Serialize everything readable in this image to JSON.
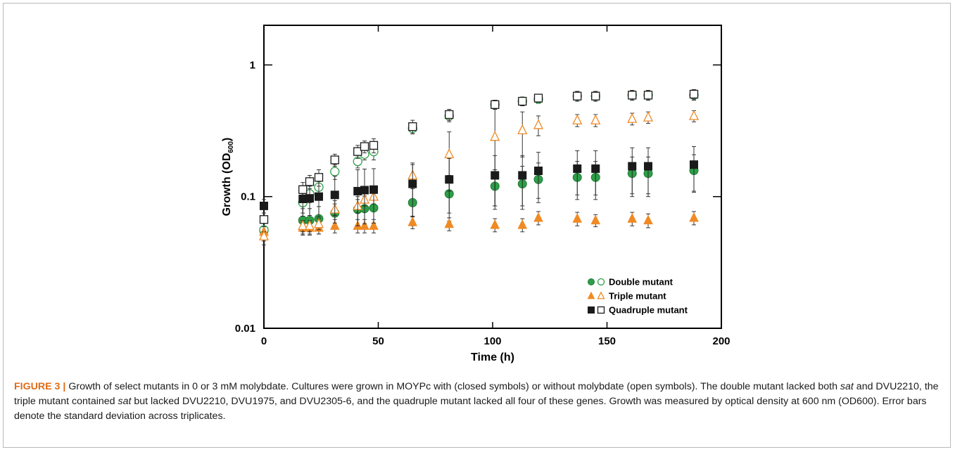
{
  "figure": {
    "label": "FIGURE 3",
    "separator": "|",
    "caption": {
      "p1": " Growth of select mutants in 0 or 3 mM molybdate. Cultures were grown in MOYPc with (closed symbols) or without molybdate (open symbols). The double mutant lacked both ",
      "sat1": "sat",
      "p2": " and DVU2210, the triple mutant contained ",
      "sat2": "sat",
      "p3": " but lacked DVU2210, DVU1975, and DVU2305-6, and the quadruple mutant lacked all four of these genes. Growth was measured by optical density at 600 nm (OD600). Error bars denote the standard deviation across triplicates."
    }
  },
  "chart_data": {
    "type": "scatter",
    "title": "",
    "xlabel": "Time (h)",
    "ylabel_main": "Growth (OD",
    "ylabel_sub": "600",
    "ylabel_close": ")",
    "xlim": [
      0,
      200
    ],
    "ylim": [
      0.01,
      2
    ],
    "y_scale": "log",
    "x_ticks": [
      0,
      50,
      100,
      150,
      200
    ],
    "x_tick_labels": [
      "0",
      "50",
      "100",
      "150",
      "200"
    ],
    "y_ticks": [
      0.01,
      0.1,
      1
    ],
    "y_tick_labels": [
      "0.01",
      "0.1",
      "1"
    ],
    "legend_position": "bottom-right",
    "legend": [
      {
        "label": "Double mutant",
        "marker": "circle",
        "color": "#2e9e48"
      },
      {
        "label": "Triple mutant",
        "marker": "triangle",
        "color": "#f08a24"
      },
      {
        "label": "Quadruple mutant",
        "marker": "square",
        "color": "#1a1a1a"
      }
    ],
    "series": [
      {
        "group": "Double mutant",
        "filled": true,
        "marker": "circle",
        "color": "#2e9e48",
        "x": [
          0,
          17,
          20,
          24,
          31,
          41,
          44,
          48,
          65,
          81,
          101,
          113,
          120,
          137,
          145,
          161,
          168,
          188
        ],
        "y": [
          0.055,
          0.066,
          0.066,
          0.068,
          0.075,
          0.08,
          0.081,
          0.082,
          0.09,
          0.105,
          0.12,
          0.125,
          0.135,
          0.14,
          0.14,
          0.15,
          0.15,
          0.158
        ],
        "err": [
          0.012,
          0.015,
          0.015,
          0.016,
          0.018,
          0.02,
          0.02,
          0.02,
          0.03,
          0.04,
          0.04,
          0.045,
          0.045,
          0.045,
          0.045,
          0.05,
          0.05,
          0.05
        ]
      },
      {
        "group": "Double mutant",
        "filled": false,
        "marker": "circle",
        "color": "#2e9e48",
        "x": [
          0,
          17,
          20,
          24,
          31,
          41,
          44,
          48,
          65,
          81,
          101,
          113,
          120,
          137,
          145,
          161,
          168,
          188
        ],
        "y": [
          0.056,
          0.09,
          0.105,
          0.118,
          0.155,
          0.185,
          0.21,
          0.22,
          0.33,
          0.41,
          0.5,
          0.53,
          0.55,
          0.58,
          0.58,
          0.59,
          0.59,
          0.59
        ],
        "err": [
          0.008,
          0.015,
          0.015,
          0.015,
          0.02,
          0.02,
          0.02,
          0.03,
          0.03,
          0.04,
          0.04,
          0.04,
          0.04,
          0.05,
          0.05,
          0.05,
          0.05,
          0.05
        ]
      },
      {
        "group": "Triple mutant",
        "filled": true,
        "marker": "triangle",
        "color": "#f08a24",
        "x": [
          0,
          17,
          20,
          24,
          31,
          41,
          44,
          48,
          65,
          81,
          101,
          113,
          120,
          137,
          145,
          161,
          168,
          188
        ],
        "y": [
          0.054,
          0.058,
          0.058,
          0.058,
          0.06,
          0.06,
          0.06,
          0.06,
          0.064,
          0.062,
          0.061,
          0.061,
          0.069,
          0.068,
          0.066,
          0.068,
          0.066,
          0.069
        ],
        "err": [
          0.005,
          0.006,
          0.006,
          0.006,
          0.007,
          0.007,
          0.007,
          0.007,
          0.007,
          0.007,
          0.007,
          0.007,
          0.008,
          0.008,
          0.007,
          0.008,
          0.008,
          0.008
        ]
      },
      {
        "group": "Triple mutant",
        "filled": false,
        "marker": "triangle",
        "color": "#f08a24",
        "x": [
          0,
          17,
          20,
          24,
          31,
          41,
          44,
          48,
          65,
          81,
          101,
          113,
          120,
          137,
          145,
          161,
          168,
          188
        ],
        "y": [
          0.05,
          0.06,
          0.06,
          0.062,
          0.08,
          0.085,
          0.095,
          0.1,
          0.145,
          0.21,
          0.285,
          0.32,
          0.35,
          0.38,
          0.38,
          0.39,
          0.4,
          0.41
        ],
        "err": [
          0.004,
          0.006,
          0.006,
          0.006,
          0.008,
          0.01,
          0.01,
          0.012,
          0.03,
          0.1,
          0.2,
          0.12,
          0.06,
          0.04,
          0.04,
          0.04,
          0.04,
          0.04
        ]
      },
      {
        "group": "Quadruple mutant",
        "filled": true,
        "marker": "square",
        "color": "#1a1a1a",
        "x": [
          0,
          17,
          20,
          24,
          31,
          41,
          44,
          48,
          65,
          81,
          101,
          113,
          120,
          137,
          145,
          161,
          168,
          188
        ],
        "y": [
          0.085,
          0.096,
          0.097,
          0.1,
          0.103,
          0.11,
          0.112,
          0.113,
          0.125,
          0.135,
          0.145,
          0.145,
          0.157,
          0.163,
          0.163,
          0.17,
          0.17,
          0.175
        ],
        "err": [
          0.01,
          0.025,
          0.025,
          0.03,
          0.04,
          0.05,
          0.05,
          0.05,
          0.055,
          0.06,
          0.06,
          0.06,
          0.06,
          0.06,
          0.06,
          0.065,
          0.065,
          0.065
        ]
      },
      {
        "group": "Quadruple mutant",
        "filled": false,
        "marker": "square",
        "color": "#1a1a1a",
        "x": [
          0,
          17,
          20,
          24,
          31,
          41,
          44,
          48,
          65,
          81,
          101,
          113,
          120,
          137,
          145,
          161,
          168,
          188
        ],
        "y": [
          0.067,
          0.113,
          0.13,
          0.14,
          0.19,
          0.22,
          0.24,
          0.245,
          0.34,
          0.42,
          0.5,
          0.53,
          0.56,
          0.58,
          0.58,
          0.59,
          0.59,
          0.6
        ],
        "err": [
          0.008,
          0.015,
          0.015,
          0.02,
          0.02,
          0.025,
          0.025,
          0.03,
          0.04,
          0.04,
          0.04,
          0.04,
          0.04,
          0.05,
          0.05,
          0.05,
          0.05,
          0.05
        ]
      }
    ]
  }
}
